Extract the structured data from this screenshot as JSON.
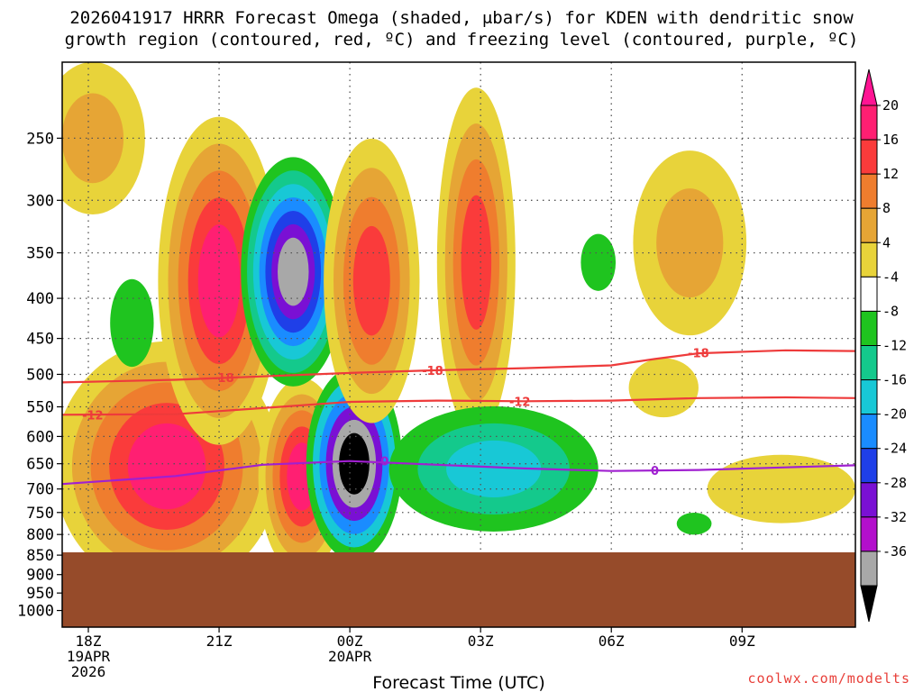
{
  "header": {
    "title_line1": "2026041917 HRRR Forecast Omega (shaded, μbar/s) for KDEN with dendritic snow",
    "title_line2": "growth region (contoured, red, ºC) and freezing level (contoured, purple, ºC)"
  },
  "footer": {
    "credit": "coolwx.com/modelts"
  },
  "chart_data": {
    "type": "time-height cross section",
    "title": "2026041917 HRRR Forecast Omega (shaded, μbar/s) for KDEN with dendritic snow growth region (contoured, red, ºC) and freezing level (contoured, purple, ºC)",
    "xlabel": "Forecast Time (UTC)",
    "ylabel": "",
    "x_ticks": [
      {
        "hour": 0,
        "label": "18Z",
        "sub1": "19APR",
        "sub2": "2026"
      },
      {
        "hour": 3,
        "label": "21Z",
        "sub1": "",
        "sub2": ""
      },
      {
        "hour": 6,
        "label": "00Z",
        "sub1": "20APR",
        "sub2": ""
      },
      {
        "hour": 9,
        "label": "03Z",
        "sub1": "",
        "sub2": ""
      },
      {
        "hour": 12,
        "label": "06Z",
        "sub1": "",
        "sub2": ""
      },
      {
        "hour": 15,
        "label": "09Z",
        "sub1": "",
        "sub2": ""
      }
    ],
    "xlim": [
      -0.6,
      17.6
    ],
    "y_ticks": [
      250,
      300,
      350,
      400,
      450,
      500,
      550,
      600,
      650,
      700,
      750,
      800,
      850,
      900,
      950,
      1000
    ],
    "ylim_hpa": [
      200,
      1050
    ],
    "terrain_top_hpa": 843,
    "terrain_color": "#964b2a",
    "grid": true,
    "colorbar": {
      "labels": [
        "20",
        "16",
        "12",
        "8",
        "4",
        "-4",
        "-8",
        "-12",
        "-16",
        "-20",
        "-24",
        "-28",
        "-32",
        "-36"
      ],
      "bins": [
        {
          "upper": "20",
          "color": "#ff1f72"
        },
        {
          "upper": "16",
          "color": "#fa3b3b"
        },
        {
          "upper": "12",
          "color": "#ef7d2e"
        },
        {
          "upper": "8",
          "color": "#e6a535"
        },
        {
          "upper": "4",
          "color": "#e8d33a"
        },
        {
          "upper": "-4",
          "color": "#ffffff"
        },
        {
          "upper": "-8",
          "color": "#1fc41f"
        },
        {
          "upper": "-12",
          "color": "#14c98c"
        },
        {
          "upper": "-16",
          "color": "#18c8d6"
        },
        {
          "upper": "-20",
          "color": "#1a8cff"
        },
        {
          "upper": "-24",
          "color": "#1f3fe8"
        },
        {
          "upper": "-28",
          "color": "#7a10d4"
        },
        {
          "upper": "-32",
          "color": "#b30fcc"
        },
        {
          "upper": "-36",
          "color": "#a8a8a8"
        }
      ],
      "top_arrow_color": "#ff1493",
      "bottom_arrow_color": "#000000"
    },
    "omega_features": [
      {
        "hour": 0.1,
        "hpa": 250,
        "dh": 1.2,
        "dp": 55,
        "levels": [
          "#e8d33a",
          "#e6a535"
        ]
      },
      {
        "hour": 1.8,
        "hpa": 655,
        "dh": 2.6,
        "dp": 230,
        "levels": [
          "#e8d33a",
          "#e6a535",
          "#ef7d2e",
          "#fa3b3b",
          "#ff1f72"
        ]
      },
      {
        "hour": 3.0,
        "hpa": 380,
        "dh": 1.4,
        "dp": 170,
        "levels": [
          "#e8d33a",
          "#e6a535",
          "#ef7d2e",
          "#fa3b3b",
          "#ff1f72"
        ]
      },
      {
        "hour": 4.9,
        "hpa": 675,
        "dh": 1.0,
        "dp": 190,
        "levels": [
          "#e8d33a",
          "#e6a535",
          "#ef7d2e",
          "#fa3b3b",
          "#ff1f72"
        ]
      },
      {
        "hour": 4.7,
        "hpa": 370,
        "dh": 1.2,
        "dp": 120,
        "levels": [
          "#1fc41f",
          "#14c98c",
          "#18c8d6",
          "#1a8cff",
          "#1f3fe8",
          "#7a10d4",
          "#a8a8a8"
        ]
      },
      {
        "hour": 6.1,
        "hpa": 650,
        "dh": 1.1,
        "dp": 180,
        "levels": [
          "#1fc41f",
          "#18c8d6",
          "#1a8cff",
          "#7a10d4",
          "#a8a8a8",
          "#000000"
        ]
      },
      {
        "hour": 6.5,
        "hpa": 380,
        "dh": 1.1,
        "dp": 150,
        "levels": [
          "#e8d33a",
          "#e6a535",
          "#ef7d2e",
          "#fa3b3b"
        ]
      },
      {
        "hour": 8.9,
        "hpa": 360,
        "dh": 0.9,
        "dp": 170,
        "levels": [
          "#e8d33a",
          "#e6a535",
          "#ef7d2e",
          "#fa3b3b"
        ]
      },
      {
        "hour": 9.3,
        "hpa": 660,
        "dh": 2.4,
        "dp": 120,
        "levels": [
          "#1fc41f",
          "#14c98c",
          "#18c8d6"
        ]
      },
      {
        "hour": 11.7,
        "hpa": 360,
        "dh": 0.4,
        "dp": 30,
        "levels": [
          "#1fc41f"
        ]
      },
      {
        "hour": 1.0,
        "hpa": 430,
        "dh": 0.5,
        "dp": 55,
        "levels": [
          "#1fc41f"
        ]
      },
      {
        "hour": 13.8,
        "hpa": 340,
        "dh": 1.3,
        "dp": 90,
        "levels": [
          "#e8d33a",
          "#e6a535"
        ]
      },
      {
        "hour": 13.2,
        "hpa": 520,
        "dh": 0.8,
        "dp": 45,
        "levels": [
          "#e8d33a"
        ]
      },
      {
        "hour": 15.9,
        "hpa": 700,
        "dh": 1.7,
        "dp": 70,
        "levels": [
          "#e8d33a"
        ]
      },
      {
        "hour": 13.9,
        "hpa": 775,
        "dh": 0.4,
        "dp": 25,
        "levels": [
          "#1fc41f"
        ]
      }
    ],
    "series": [
      {
        "name": "-18",
        "color": "#ee3b3b",
        "x": [
          -0.6,
          2,
          4,
          6,
          8,
          10,
          12,
          13,
          14,
          16,
          17.6
        ],
        "y": [
          512,
          508,
          503,
          498,
          494,
          491,
          487,
          478,
          470,
          466,
          467
        ]
      },
      {
        "name": "-12",
        "color": "#ee3b3b",
        "x": [
          -0.6,
          2,
          4,
          6,
          8,
          10,
          12,
          14,
          16,
          17.6
        ],
        "y": [
          563,
          562,
          552,
          542,
          540,
          541,
          540,
          536,
          535,
          536
        ]
      },
      {
        "name": "0",
        "color": "#a020d0",
        "x": [
          -0.6,
          2,
          4,
          6,
          8,
          10,
          12,
          14,
          16,
          17.6
        ],
        "y": [
          690,
          674,
          652,
          645,
          652,
          659,
          664,
          662,
          657,
          653
        ]
      }
    ],
    "contour_labels": [
      {
        "text": "-18",
        "hour": 3.1,
        "hpa": 505,
        "color": "#ee3b3b"
      },
      {
        "text": "-18",
        "hour": 7.9,
        "hpa": 494,
        "color": "#ee3b3b"
      },
      {
        "text": "-18",
        "hour": 14.0,
        "hpa": 469,
        "color": "#ee3b3b"
      },
      {
        "text": "-12",
        "hour": 0.1,
        "hpa": 563,
        "color": "#ee3b3b"
      },
      {
        "text": "-12",
        "hour": 9.9,
        "hpa": 541,
        "color": "#ee3b3b"
      },
      {
        "text": "0",
        "hour": 6.8,
        "hpa": 645,
        "color": "#a020d0"
      },
      {
        "text": "0",
        "hour": 13.0,
        "hpa": 663,
        "color": "#a020d0"
      }
    ]
  }
}
